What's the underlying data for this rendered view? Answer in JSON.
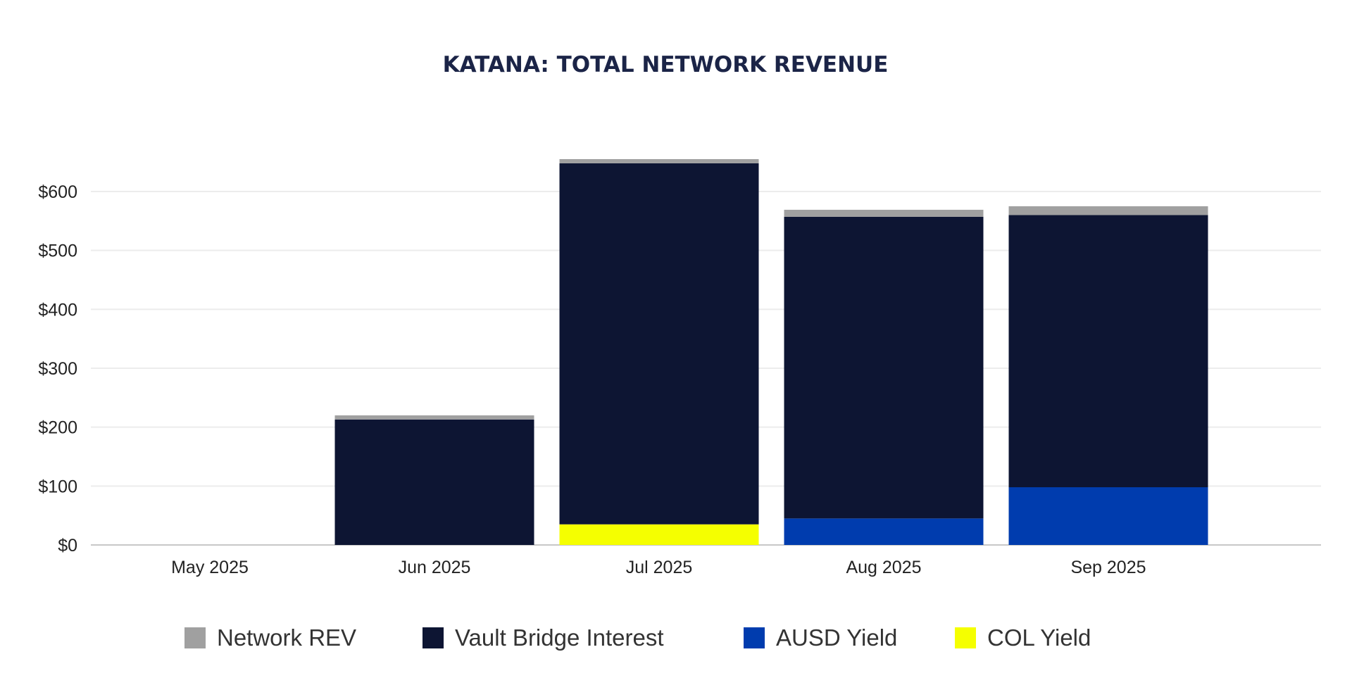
{
  "chart_data": {
    "type": "bar",
    "stacked": true,
    "title": "KATANA: TOTAL NETWORK REVENUE",
    "xlabel": "",
    "ylabel": "",
    "categories": [
      "May 2025",
      "Jun 2025",
      "Jul 2025",
      "Aug 2025",
      "Sep 2025"
    ],
    "yticks": [
      "$0",
      "$100",
      "$200",
      "$300",
      "$400",
      "$500",
      "$600"
    ],
    "ylim": [
      0,
      660
    ],
    "grid": true,
    "legend_position": "bottom",
    "series": [
      {
        "name": "COL Yield",
        "color": "#f5ff00",
        "values": [
          0,
          0,
          35,
          0,
          0
        ]
      },
      {
        "name": "AUSD Yield",
        "color": "#003cae",
        "values": [
          0,
          0,
          0,
          45,
          98
        ]
      },
      {
        "name": "Vault Bridge Interest",
        "color": "#0d1533",
        "values": [
          0,
          213,
          613,
          512,
          462
        ]
      },
      {
        "name": "Network REV",
        "color": "#a0a0a0",
        "values": [
          0,
          7,
          7,
          12,
          15
        ]
      }
    ],
    "legend_order": [
      "Network REV",
      "Vault Bridge Interest",
      "AUSD Yield",
      "COL Yield"
    ]
  }
}
